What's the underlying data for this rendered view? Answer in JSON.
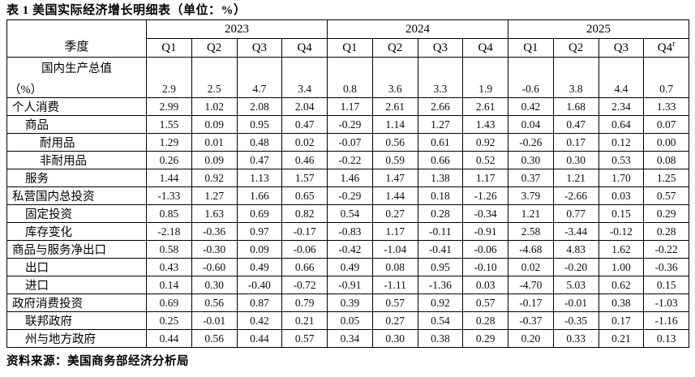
{
  "title": "表 1 美国实际经济增长明细表（单位：%）",
  "source": "资料来源：美国商务部经济分析局",
  "colors": {
    "background": "#ffffff",
    "border": "#000000",
    "label_text": "#000000",
    "number_text": "#0d0d1a"
  },
  "table": {
    "corner_label": "季度",
    "year_labels": [
      "2023",
      "2024",
      "2025"
    ],
    "quarter_labels": [
      "Q1",
      "Q2",
      "Q3",
      "Q4",
      "Q1",
      "Q2",
      "Q3",
      "Q4",
      "Q1",
      "Q2",
      "Q3",
      "Q4"
    ],
    "q4_note": "r",
    "gdp_row": {
      "label_line1": "国内生产总值",
      "label_line2": "（%）",
      "values": [
        "2.9",
        "2.5",
        "4.7",
        "3.4",
        "0.8",
        "3.6",
        "3.3",
        "1.9",
        "-0.6",
        "3.8",
        "4.4",
        "0.7"
      ]
    },
    "rows": [
      {
        "label": "个人消费",
        "indent": 0,
        "values": [
          "2.99",
          "1.02",
          "2.08",
          "2.04",
          "1.17",
          "2.61",
          "2.66",
          "2.61",
          "0.42",
          "1.68",
          "2.34",
          "1.33"
        ]
      },
      {
        "label": "商品",
        "indent": 1,
        "values": [
          "1.55",
          "0.09",
          "0.95",
          "0.47",
          "-0.29",
          "1.14",
          "1.27",
          "1.43",
          "0.04",
          "0.47",
          "0.64",
          "0.07"
        ]
      },
      {
        "label": "耐用品",
        "indent": 2,
        "values": [
          "1.29",
          "0.01",
          "0.48",
          "0.02",
          "-0.07",
          "0.56",
          "0.61",
          "0.92",
          "-0.26",
          "0.17",
          "0.12",
          "0.00"
        ]
      },
      {
        "label": "非耐用品",
        "indent": 2,
        "values": [
          "0.26",
          "0.09",
          "0.47",
          "0.46",
          "-0.22",
          "0.59",
          "0.66",
          "0.52",
          "0.30",
          "0.30",
          "0.53",
          "0.08"
        ]
      },
      {
        "label": "服务",
        "indent": 1,
        "values": [
          "1.44",
          "0.92",
          "1.13",
          "1.57",
          "1.46",
          "1.47",
          "1.38",
          "1.17",
          "0.37",
          "1.21",
          "1.70",
          "1.25"
        ]
      },
      {
        "label": "私营国内总投资",
        "indent": 0,
        "values": [
          "-1.33",
          "1.27",
          "1.66",
          "0.65",
          "-0.29",
          "1.44",
          "0.18",
          "-1.26",
          "3.79",
          "-2.66",
          "0.03",
          "0.57"
        ]
      },
      {
        "label": "固定投资",
        "indent": 1,
        "values": [
          "0.85",
          "1.63",
          "0.69",
          "0.82",
          "0.54",
          "0.27",
          "0.28",
          "-0.34",
          "1.21",
          "0.77",
          "0.15",
          "0.29"
        ]
      },
      {
        "label": "库存变化",
        "indent": 1,
        "values": [
          "-2.18",
          "-0.36",
          "0.97",
          "-0.17",
          "-0.83",
          "1.17",
          "-0.11",
          "-0.91",
          "2.58",
          "-3.44",
          "-0.12",
          "0.28"
        ]
      },
      {
        "label": "商品与服务净出口",
        "indent": 0,
        "values": [
          "0.58",
          "-0.30",
          "0.09",
          "-0.06",
          "-0.42",
          "-1.04",
          "-0.41",
          "-0.06",
          "-4.68",
          "4.83",
          "1.62",
          "-0.22"
        ]
      },
      {
        "label": "出口",
        "indent": 1,
        "values": [
          "0.43",
          "-0.60",
          "0.49",
          "0.66",
          "0.49",
          "0.08",
          "0.95",
          "-0.10",
          "0.02",
          "-0.20",
          "1.00",
          "-0.36"
        ]
      },
      {
        "label": "进口",
        "indent": 1,
        "values": [
          "0.14",
          "0.30",
          "-0.40",
          "-0.72",
          "-0.91",
          "-1.11",
          "-1.36",
          "0.03",
          "-4.70",
          "5.03",
          "0.62",
          "0.15"
        ]
      },
      {
        "label": "政府消费投资",
        "indent": 0,
        "values": [
          "0.69",
          "0.56",
          "0.87",
          "0.79",
          "0.39",
          "0.57",
          "0.92",
          "0.57",
          "-0.17",
          "-0.01",
          "0.38",
          "-1.03"
        ]
      },
      {
        "label": "联邦政府",
        "indent": 1,
        "values": [
          "0.25",
          "-0.01",
          "0.42",
          "0.21",
          "0.05",
          "0.27",
          "0.54",
          "0.28",
          "-0.37",
          "-0.35",
          "0.17",
          "-1.16"
        ]
      },
      {
        "label": "州与地方政府",
        "indent": 1,
        "values": [
          "0.44",
          "0.56",
          "0.44",
          "0.57",
          "0.34",
          "0.30",
          "0.38",
          "0.29",
          "0.20",
          "0.33",
          "0.21",
          "0.13"
        ]
      }
    ]
  }
}
